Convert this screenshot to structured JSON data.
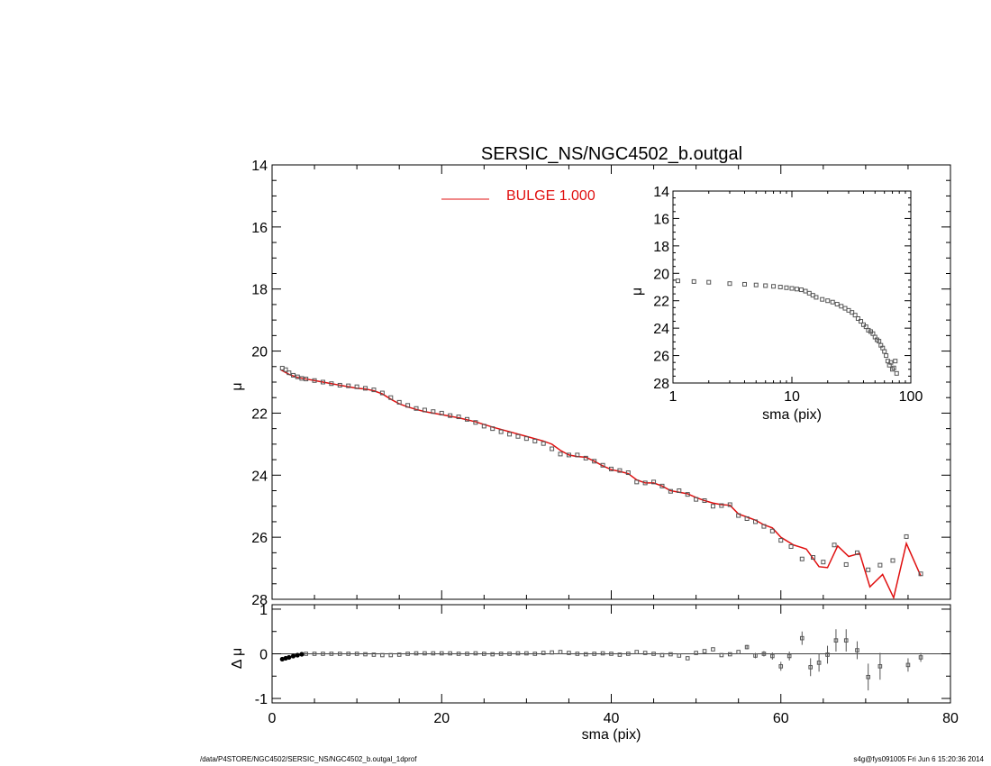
{
  "title": "SERSIC_NS/NGC4502_b.outgal",
  "footer_left": "/data/P4STORE/NGC4502/SERSIC_NS/NGC4502_b.outgal_1dprof",
  "footer_right": "s4g@fys091005  Fri Jun  6 15:20:36 2014",
  "colors": {
    "model": "#e01010",
    "data": "#555555",
    "axes": "#000000"
  },
  "chart_data": [
    {
      "panel": "main",
      "type": "line",
      "title": "SERSIC_NS/NGC4502_b.outgal",
      "xlabel": "",
      "ylabel": "μ",
      "xlim": [
        0,
        80
      ],
      "ylim": [
        28,
        14
      ],
      "x_ticks": [
        0,
        20,
        40,
        60,
        80
      ],
      "x_tick_labels": [
        "",
        "",
        "",
        "",
        ""
      ],
      "y_ticks": [
        14,
        16,
        18,
        20,
        22,
        24,
        26,
        28
      ],
      "y_tick_labels": [
        "14",
        "16",
        "18",
        "20",
        "22",
        "24",
        "26",
        "28"
      ],
      "legend": [
        {
          "label": "BULGE  1.000",
          "color": "#e01010"
        }
      ],
      "legend_position": "top-center",
      "series": [
        {
          "name": "BULGE  1.000",
          "style": "line",
          "x": [
            1.0,
            2.0,
            3.0,
            4.0,
            5.0,
            6.0,
            7.0,
            8.0,
            9.0,
            10.0,
            11.0,
            12.0,
            13.0,
            14.0,
            15.0,
            16.0,
            17.0,
            18.0,
            20.0,
            22.0,
            24.0,
            26.0,
            28.0,
            30.0,
            32.0,
            33.0,
            34.0,
            35.0,
            36.0,
            37.0,
            38.0,
            39.0,
            40.0,
            41.0,
            42.0,
            43.0,
            44.0,
            45.0,
            46.0,
            47.0,
            48.0,
            49.0,
            50.0,
            51.0,
            52.0,
            53.0,
            54.0,
            55.0,
            56.0,
            57.0,
            58.0,
            59.0,
            60.0,
            61.5,
            63.0,
            64.5,
            65.5,
            66.7,
            68.0,
            69.3,
            70.5,
            72.0,
            73.3,
            74.8,
            76.5
          ],
          "y": [
            20.6,
            20.75,
            20.85,
            20.9,
            20.95,
            21.0,
            21.05,
            21.1,
            21.15,
            21.2,
            21.22,
            21.28,
            21.38,
            21.55,
            21.7,
            21.8,
            21.88,
            21.95,
            22.05,
            22.15,
            22.28,
            22.45,
            22.6,
            22.75,
            22.9,
            23.0,
            23.2,
            23.35,
            23.4,
            23.42,
            23.55,
            23.7,
            23.82,
            23.88,
            23.95,
            24.15,
            24.25,
            24.25,
            24.35,
            24.5,
            24.55,
            24.6,
            24.72,
            24.82,
            24.9,
            24.95,
            24.97,
            25.25,
            25.35,
            25.45,
            25.6,
            25.7,
            26.0,
            26.25,
            26.38,
            26.95,
            26.98,
            26.28,
            26.62,
            26.52,
            27.6,
            27.2,
            27.95,
            26.2,
            27.25
          ]
        },
        {
          "name": "",
          "style": "markers",
          "x": [
            1.2,
            1.6,
            2.0,
            2.5,
            3.0,
            3.5,
            4.0,
            5.0,
            6.0,
            7.0,
            8.0,
            9.0,
            10.0,
            11.0,
            12.0,
            13.0,
            14.0,
            15.0,
            16.0,
            17.0,
            18.0,
            19.0,
            20.0,
            21.0,
            22.0,
            23.0,
            24.0,
            25.0,
            26.0,
            27.0,
            28.0,
            29.0,
            30.0,
            31.0,
            32.0,
            33.0,
            34.0,
            35.0,
            36.0,
            37.0,
            38.0,
            39.0,
            40.0,
            41.0,
            42.0,
            43.0,
            44.0,
            45.0,
            46.0,
            47.0,
            48.0,
            49.0,
            50.0,
            51.0,
            52.0,
            53.0,
            54.0,
            55.0,
            56.0,
            57.0,
            58.0,
            59.0,
            60.0,
            61.2,
            62.5,
            63.8,
            65.0,
            66.3,
            67.7,
            69.0,
            70.3,
            71.7,
            73.2,
            74.8,
            76.5
          ],
          "y": [
            20.55,
            20.6,
            20.7,
            20.78,
            20.83,
            20.88,
            20.9,
            20.95,
            21.0,
            21.05,
            21.1,
            21.12,
            21.15,
            21.2,
            21.25,
            21.35,
            21.5,
            21.65,
            21.75,
            21.85,
            21.9,
            21.95,
            22.0,
            22.08,
            22.12,
            22.2,
            22.3,
            22.42,
            22.5,
            22.6,
            22.68,
            22.75,
            22.82,
            22.9,
            22.98,
            23.15,
            23.32,
            23.35,
            23.35,
            23.45,
            23.55,
            23.68,
            23.8,
            23.85,
            23.92,
            24.22,
            24.25,
            24.22,
            24.35,
            24.52,
            24.5,
            24.62,
            24.78,
            24.82,
            25.0,
            24.98,
            24.95,
            25.3,
            25.4,
            25.5,
            25.65,
            25.8,
            26.1,
            26.3,
            26.7,
            26.65,
            26.8,
            26.25,
            26.88,
            26.5,
            27.05,
            26.9,
            26.75,
            25.98,
            27.18
          ]
        }
      ]
    },
    {
      "panel": "inset",
      "type": "scatter",
      "xlabel": "sma (pix)",
      "ylabel": "μ",
      "xscale": "log",
      "xlim": [
        1,
        100
      ],
      "ylim": [
        28,
        14
      ],
      "x_ticks": [
        1,
        10,
        100
      ],
      "x_tick_labels": [
        "1",
        "10",
        "100"
      ],
      "y_ticks": [
        14,
        16,
        18,
        20,
        22,
        24,
        26,
        28
      ],
      "y_tick_labels": [
        "14",
        "16",
        "18",
        "20",
        "22",
        "24",
        "26",
        "28"
      ],
      "series": [
        {
          "name": "",
          "x": [
            1.1,
            1.5,
            2.0,
            3.0,
            4.0,
            5.0,
            6.0,
            7.0,
            8.0,
            9.0,
            10.0,
            11.0,
            12.0,
            13.0,
            14.0,
            15.0,
            16.0,
            18.0,
            20.0,
            22.0,
            24.0,
            26.0,
            28.0,
            30.0,
            32.0,
            34.0,
            36.0,
            38.0,
            40.0,
            42.0,
            44.0,
            46.0,
            48.0,
            50.0,
            52.0,
            54.0,
            56.0,
            58.0,
            60.0,
            62.0,
            64.0,
            66.0,
            68.0,
            70.0,
            72.0,
            74.0,
            76.0
          ],
          "y": [
            20.55,
            20.6,
            20.65,
            20.75,
            20.8,
            20.85,
            20.9,
            20.95,
            21.0,
            21.05,
            21.1,
            21.15,
            21.2,
            21.3,
            21.45,
            21.6,
            21.75,
            21.9,
            22.0,
            22.1,
            22.25,
            22.4,
            22.55,
            22.7,
            22.85,
            23.05,
            23.3,
            23.5,
            23.75,
            23.9,
            24.15,
            24.25,
            24.4,
            24.65,
            24.85,
            24.95,
            25.25,
            25.45,
            25.7,
            26.0,
            26.4,
            26.7,
            26.5,
            27.0,
            26.9,
            26.4,
            27.3
          ]
        }
      ]
    },
    {
      "panel": "residual",
      "type": "scatter",
      "xlabel": "sma (pix)",
      "ylabel": "Δ μ",
      "xlim": [
        0,
        80
      ],
      "ylim": [
        -1.1,
        1.1
      ],
      "x_ticks": [
        0,
        20,
        40,
        60,
        80
      ],
      "x_tick_labels": [
        "0",
        "20",
        "40",
        "60",
        "80"
      ],
      "y_ticks": [
        -1,
        0,
        1
      ],
      "y_tick_labels": [
        "-1",
        "0",
        "1"
      ],
      "series": [
        {
          "name": "",
          "x": [
            1.2,
            1.6,
            2.0,
            2.5,
            3.0,
            3.5,
            4.0,
            5.0,
            6.0,
            7.0,
            8.0,
            9.0,
            10.0,
            11.0,
            12.0,
            13.0,
            14.0,
            15.0,
            16.0,
            17.0,
            18.0,
            19.0,
            20.0,
            21.0,
            22.0,
            23.0,
            24.0,
            25.0,
            26.0,
            27.0,
            28.0,
            29.0,
            30.0,
            31.0,
            32.0,
            33.0,
            34.0,
            35.0,
            36.0,
            37.0,
            38.0,
            39.0,
            40.0,
            41.0,
            42.0,
            43.0,
            44.0,
            45.0,
            46.0,
            47.0,
            48.0,
            49.0,
            50.0,
            51.0,
            52.0,
            53.0,
            54.0,
            55.0,
            56.0,
            57.0,
            58.0,
            59.0,
            60.0,
            61.0,
            62.5,
            63.5,
            64.5,
            65.5,
            66.5,
            67.7,
            69.0,
            70.3,
            71.7,
            75.0,
            76.5
          ],
          "y": [
            -0.12,
            -0.1,
            -0.08,
            -0.05,
            -0.03,
            -0.01,
            0.0,
            0.0,
            0.0,
            0.0,
            0.0,
            0.0,
            0.0,
            -0.01,
            -0.02,
            -0.03,
            -0.03,
            -0.02,
            0.0,
            0.01,
            0.01,
            0.01,
            0.01,
            0.01,
            0.0,
            0.0,
            0.01,
            0.0,
            -0.01,
            0.0,
            0.0,
            0.01,
            0.01,
            0.0,
            0.02,
            0.03,
            0.04,
            0.02,
            0.0,
            -0.01,
            0.0,
            0.01,
            0.0,
            -0.02,
            0.0,
            0.04,
            0.02,
            0.0,
            -0.03,
            -0.01,
            -0.04,
            -0.1,
            0.02,
            0.06,
            0.1,
            -0.03,
            -0.01,
            0.04,
            0.15,
            -0.04,
            0.0,
            -0.05,
            -0.28,
            -0.05,
            0.35,
            -0.3,
            -0.2,
            -0.02,
            0.3,
            0.3,
            0.08,
            -0.52,
            -0.28,
            -0.25,
            -0.08
          ],
          "err": [
            0.01,
            0.01,
            0.01,
            0.01,
            0.01,
            0.01,
            0.01,
            0.01,
            0.01,
            0.01,
            0.01,
            0.01,
            0.01,
            0.01,
            0.01,
            0.01,
            0.01,
            0.01,
            0.01,
            0.01,
            0.01,
            0.01,
            0.01,
            0.01,
            0.01,
            0.01,
            0.01,
            0.01,
            0.01,
            0.01,
            0.01,
            0.01,
            0.01,
            0.01,
            0.01,
            0.01,
            0.01,
            0.01,
            0.01,
            0.01,
            0.01,
            0.01,
            0.01,
            0.01,
            0.01,
            0.01,
            0.01,
            0.01,
            0.01,
            0.01,
            0.01,
            0.01,
            0.01,
            0.02,
            0.02,
            0.02,
            0.02,
            0.03,
            0.05,
            0.06,
            0.06,
            0.08,
            0.1,
            0.1,
            0.15,
            0.2,
            0.2,
            0.2,
            0.25,
            0.25,
            0.2,
            0.3,
            0.3,
            0.15,
            0.1
          ]
        }
      ]
    }
  ]
}
